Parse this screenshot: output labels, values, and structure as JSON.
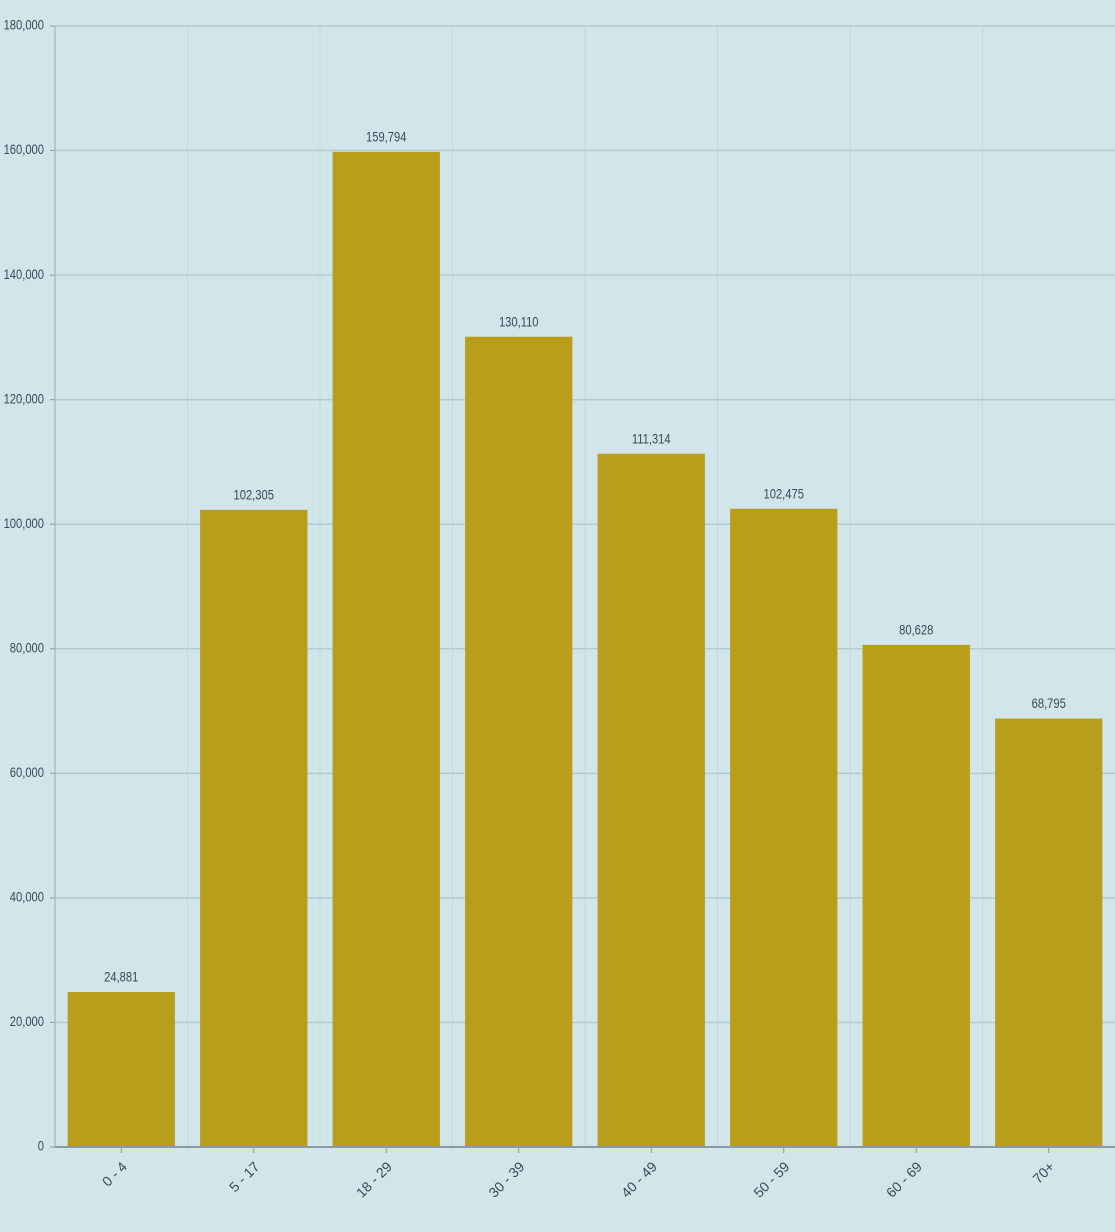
{
  "chart_data": {
    "type": "bar",
    "categories": [
      "0 - 4",
      "5 - 17",
      "18 - 29",
      "30 - 39",
      "40 - 49",
      "50 - 59",
      "60 - 69",
      "70+"
    ],
    "values": [
      24881,
      102305,
      159794,
      130110,
      111314,
      102475,
      80628,
      68795
    ],
    "value_labels": [
      "24,881",
      "102,305",
      "159,794",
      "130,110",
      "111,314",
      "102,475",
      "80,628",
      "68,795"
    ],
    "color": "#b89e1a",
    "ylim": [
      0,
      180000
    ],
    "yticks": [
      0,
      {
        "value": 20000,
        "label": "20,000"
      },
      {
        "value": 40000,
        "label": "40,000"
      },
      {
        "value": 60000,
        "label": "60,000"
      },
      {
        "value": 80000,
        "label": "80,000"
      },
      {
        "value": 100000,
        "label": "100,000"
      },
      {
        "value": 120000,
        "label": "120,000"
      },
      {
        "value": 140000,
        "label": "140,000"
      },
      {
        "value": 160000,
        "label": "160,000"
      },
      {
        "value": 180000,
        "label": "180,000"
      }
    ],
    "grid": true
  }
}
